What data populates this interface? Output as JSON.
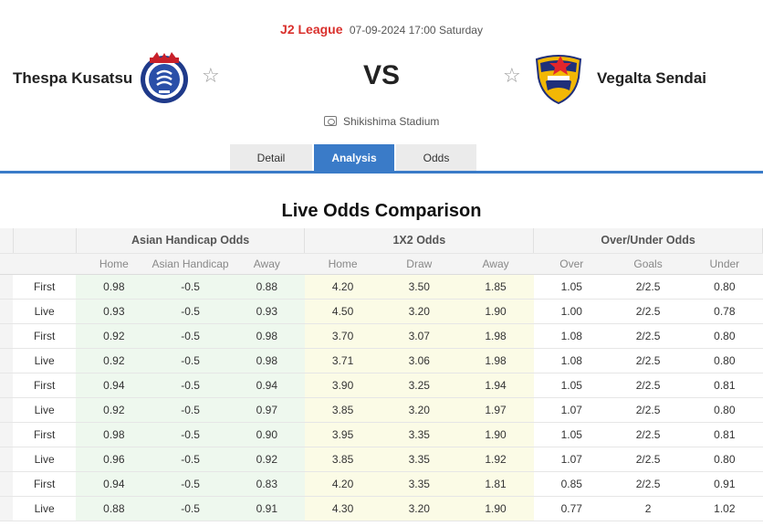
{
  "match": {
    "league": "J2 League",
    "datetime": "07-09-2024 17:00 Saturday",
    "home_team": "Thespa Kusatsu",
    "away_team": "Vegalta Sendai",
    "vs": "VS",
    "venue": "Shikishima Stadium",
    "home_logo_icon": "thespa-kusatsu-crest-icon",
    "away_logo_icon": "vegalta-sendai-crest-icon",
    "favorite_icon": "star-outline-icon"
  },
  "tabs": [
    {
      "label": "Detail",
      "active": false
    },
    {
      "label": "Analysis",
      "active": true
    },
    {
      "label": "Odds",
      "active": false
    }
  ],
  "colors": {
    "accent": "#3a7bc8",
    "league": "#d9302c",
    "asian_handicap_bg": "#eef8ee",
    "x12_bg": "#fbfbe6"
  },
  "section_title": "Live Odds Comparison",
  "table": {
    "groups": [
      "Asian Handicap Odds",
      "1X2 Odds",
      "Over/Under Odds"
    ],
    "sub_headers": [
      "Home",
      "Asian Handicap",
      "Away",
      "Home",
      "Draw",
      "Away",
      "Over",
      "Goals",
      "Under"
    ],
    "rows": [
      {
        "type": "First",
        "cells": [
          "0.98",
          "-0.5",
          "0.88",
          "4.20",
          "3.50",
          "1.85",
          "1.05",
          "2/2.5",
          "0.80"
        ]
      },
      {
        "type": "Live",
        "cells": [
          "0.93",
          "-0.5",
          "0.93",
          "4.50",
          "3.20",
          "1.90",
          "1.00",
          "2/2.5",
          "0.78"
        ]
      },
      {
        "type": "First",
        "cells": [
          "0.92",
          "-0.5",
          "0.98",
          "3.70",
          "3.07",
          "1.98",
          "1.08",
          "2/2.5",
          "0.80"
        ]
      },
      {
        "type": "Live",
        "cells": [
          "0.92",
          "-0.5",
          "0.98",
          "3.71",
          "3.06",
          "1.98",
          "1.08",
          "2/2.5",
          "0.80"
        ]
      },
      {
        "type": "First",
        "cells": [
          "0.94",
          "-0.5",
          "0.94",
          "3.90",
          "3.25",
          "1.94",
          "1.05",
          "2/2.5",
          "0.81"
        ]
      },
      {
        "type": "Live",
        "cells": [
          "0.92",
          "-0.5",
          "0.97",
          "3.85",
          "3.20",
          "1.97",
          "1.07",
          "2/2.5",
          "0.80"
        ]
      },
      {
        "type": "First",
        "cells": [
          "0.98",
          "-0.5",
          "0.90",
          "3.95",
          "3.35",
          "1.90",
          "1.05",
          "2/2.5",
          "0.81"
        ]
      },
      {
        "type": "Live",
        "cells": [
          "0.96",
          "-0.5",
          "0.92",
          "3.85",
          "3.35",
          "1.92",
          "1.07",
          "2/2.5",
          "0.80"
        ]
      },
      {
        "type": "First",
        "cells": [
          "0.94",
          "-0.5",
          "0.83",
          "4.20",
          "3.35",
          "1.81",
          "0.85",
          "2/2.5",
          "0.91"
        ]
      },
      {
        "type": "Live",
        "cells": [
          "0.88",
          "-0.5",
          "0.91",
          "4.30",
          "3.20",
          "1.90",
          "0.77",
          "2",
          "1.02"
        ]
      }
    ]
  }
}
